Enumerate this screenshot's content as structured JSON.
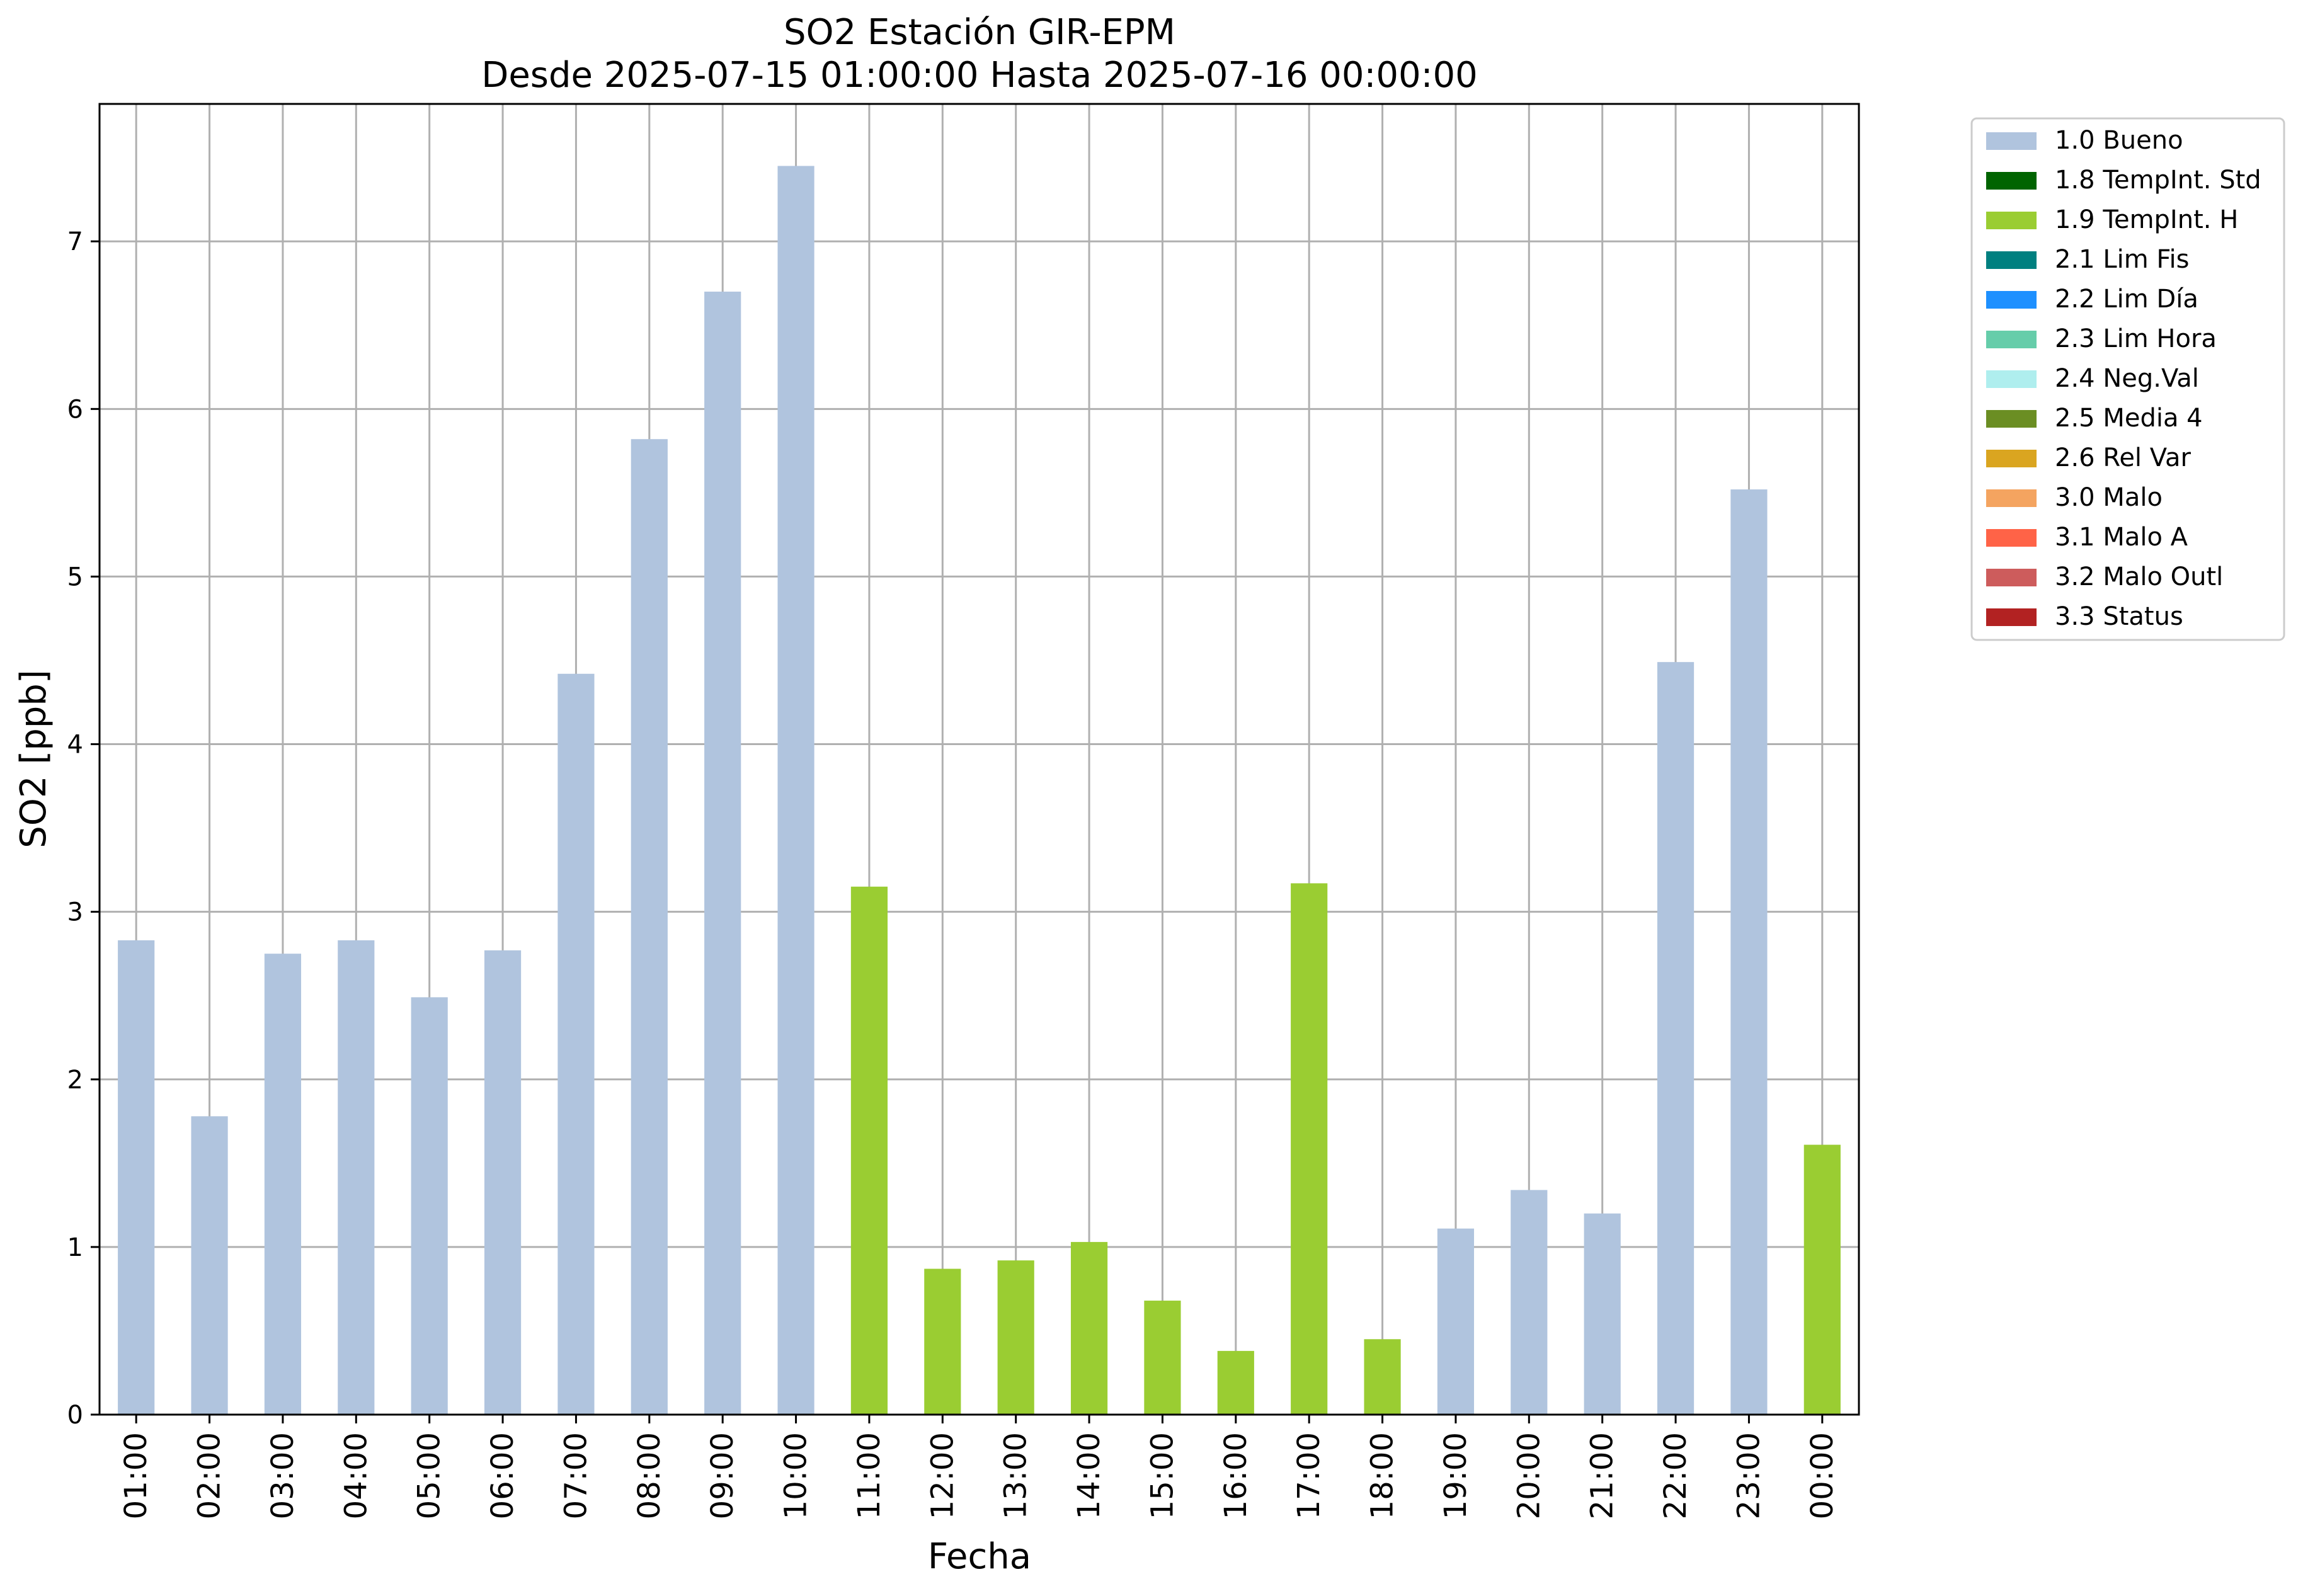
{
  "chart_data": {
    "type": "bar",
    "title": "SO2 Estación GIR-EPM",
    "subtitle": "Desde 2025-07-15 01:00:00 Hasta 2025-07-16 00:00:00",
    "xlabel": "Fecha",
    "ylabel": "SO2 [ppb]",
    "ylim": [
      0,
      7.82
    ],
    "yticks": [
      "0",
      "1",
      "2",
      "3",
      "4",
      "5",
      "6",
      "7"
    ],
    "grid": true,
    "legend_position": "outside-top-right",
    "categories": [
      "01:00",
      "02:00",
      "03:00",
      "04:00",
      "05:00",
      "06:00",
      "07:00",
      "08:00",
      "09:00",
      "10:00",
      "11:00",
      "12:00",
      "13:00",
      "14:00",
      "15:00",
      "16:00",
      "17:00",
      "18:00",
      "19:00",
      "20:00",
      "21:00",
      "22:00",
      "23:00",
      "00:00"
    ],
    "values": [
      2.83,
      1.78,
      2.75,
      2.83,
      2.49,
      2.77,
      4.42,
      5.82,
      6.7,
      7.45,
      3.15,
      0.87,
      0.92,
      1.03,
      0.68,
      0.38,
      3.17,
      0.45,
      1.11,
      1.34,
      1.2,
      4.49,
      5.52,
      1.61
    ],
    "bar_flags": [
      "1.0 Bueno",
      "1.0 Bueno",
      "1.0 Bueno",
      "1.0 Bueno",
      "1.0 Bueno",
      "1.0 Bueno",
      "1.0 Bueno",
      "1.0 Bueno",
      "1.0 Bueno",
      "1.0 Bueno",
      "1.9 TempInt. H",
      "1.9 TempInt. H",
      "1.9 TempInt. H",
      "1.9 TempInt. H",
      "1.9 TempInt. H",
      "1.9 TempInt. H",
      "1.9 TempInt. H",
      "1.9 TempInt. H",
      "1.0 Bueno",
      "1.0 Bueno",
      "1.0 Bueno",
      "1.0 Bueno",
      "1.0 Bueno",
      "1.9 TempInt. H"
    ],
    "legend": [
      {
        "label": "1.0 Bueno",
        "color": "#b0c4de"
      },
      {
        "label": "1.8 TempInt. Std",
        "color": "#006400"
      },
      {
        "label": "1.9 TempInt. H",
        "color": "#9acd32"
      },
      {
        "label": "2.1 Lim Fis",
        "color": "#008080"
      },
      {
        "label": "2.2 Lim Día",
        "color": "#1e90ff"
      },
      {
        "label": "2.3 Lim Hora",
        "color": "#66cdaa"
      },
      {
        "label": "2.4 Neg.Val",
        "color": "#afeeee"
      },
      {
        "label": "2.5 Media 4",
        "color": "#6b8e23"
      },
      {
        "label": "2.6 Rel Var",
        "color": "#daa520"
      },
      {
        "label": "3.0 Malo",
        "color": "#f4a460"
      },
      {
        "label": "3.1 Malo A",
        "color": "#ff6347"
      },
      {
        "label": "3.2 Malo Outl",
        "color": "#cd5c5c"
      },
      {
        "label": "3.3 Status",
        "color": "#b22222"
      }
    ]
  }
}
